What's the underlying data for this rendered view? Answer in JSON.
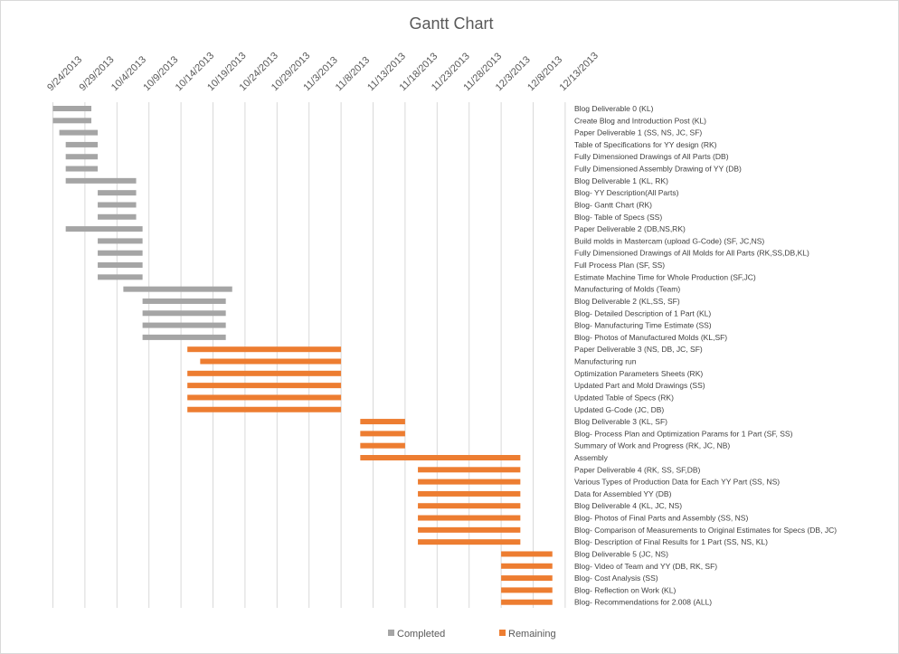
{
  "chart_data": {
    "type": "gantt",
    "title": "Gantt Chart",
    "x_ticks": [
      "9/24/2013",
      "9/29/2013",
      "10/4/2013",
      "10/9/2013",
      "10/14/2013",
      "10/19/2013",
      "10/24/2013",
      "10/29/2013",
      "11/3/2013",
      "11/8/2013",
      "11/13/2013",
      "11/18/2013",
      "11/23/2013",
      "11/28/2013",
      "12/3/2013",
      "12/8/2013",
      "12/13/2013"
    ],
    "xlim": [
      "2013-09-24",
      "2013-12-13"
    ],
    "grid": "vertical",
    "legend_position": "bottom",
    "series": [
      {
        "name": "Completed",
        "color": "#a5a5a5"
      },
      {
        "name": "Remaining",
        "color": "#ed7d31"
      }
    ],
    "tasks": [
      {
        "label": "Blog Deliverable 0   (KL)",
        "start": "2013-09-24",
        "end": "2013-09-30",
        "status": "Completed"
      },
      {
        "label": "Create Blog and Introduction Post  (KL)",
        "start": "2013-09-24",
        "end": "2013-09-30",
        "status": "Completed"
      },
      {
        "label": "Paper Deliverable 1 (SS, NS, JC, SF)",
        "start": "2013-09-25",
        "end": "2013-10-01",
        "status": "Completed"
      },
      {
        "label": "Table of Specifications for YY design (RK)",
        "start": "2013-09-26",
        "end": "2013-10-01",
        "status": "Completed"
      },
      {
        "label": "Fully Dimensioned Drawings of All Parts  (DB)",
        "start": "2013-09-26",
        "end": "2013-10-01",
        "status": "Completed"
      },
      {
        "label": "Fully Dimensioned Assembly Drawing of YY  (DB)",
        "start": "2013-09-26",
        "end": "2013-10-01",
        "status": "Completed"
      },
      {
        "label": "Blog Deliverable 1  (KL, RK)",
        "start": "2013-09-26",
        "end": "2013-10-07",
        "status": "Completed"
      },
      {
        "label": "Blog- YY Description(All Parts)",
        "start": "2013-10-01",
        "end": "2013-10-07",
        "status": "Completed"
      },
      {
        "label": "Blog- Gantt Chart (RK)",
        "start": "2013-10-01",
        "end": "2013-10-07",
        "status": "Completed"
      },
      {
        "label": "Blog- Table of Specs (SS)",
        "start": "2013-10-01",
        "end": "2013-10-07",
        "status": "Completed"
      },
      {
        "label": "Paper Deliverable 2  (DB,NS,RK)",
        "start": "2013-09-26",
        "end": "2013-10-08",
        "status": "Completed"
      },
      {
        "label": "Build molds in Mastercam (upload G-Code) (SF, JC,NS)",
        "start": "2013-10-01",
        "end": "2013-10-08",
        "status": "Completed"
      },
      {
        "label": "Fully Dimensioned Drawings of All Molds for All Parts  (RK,SS,DB,KL)",
        "start": "2013-10-01",
        "end": "2013-10-08",
        "status": "Completed"
      },
      {
        "label": "Full Process Plan (SF, SS)",
        "start": "2013-10-01",
        "end": "2013-10-08",
        "status": "Completed"
      },
      {
        "label": "Estimate Machine Time for Whole Production (SF,JC)",
        "start": "2013-10-01",
        "end": "2013-10-08",
        "status": "Completed"
      },
      {
        "label": "Manufacturing of Molds (Team)",
        "start": "2013-10-05",
        "end": "2013-10-22",
        "status": "Completed"
      },
      {
        "label": "Blog Deliverable 2 (KL,SS, SF)",
        "start": "2013-10-08",
        "end": "2013-10-21",
        "status": "Completed"
      },
      {
        "label": "Blog- Detailed Description of 1 Part (KL)",
        "start": "2013-10-08",
        "end": "2013-10-21",
        "status": "Completed"
      },
      {
        "label": "Blog- Manufacturing Time Estimate (SS)",
        "start": "2013-10-08",
        "end": "2013-10-21",
        "status": "Completed"
      },
      {
        "label": "Blog- Photos of Manufactured Molds (KL,SF)",
        "start": "2013-10-08",
        "end": "2013-10-21",
        "status": "Completed"
      },
      {
        "label": "Paper Deliverable 3 (NS, DB, JC, SF)",
        "start": "2013-10-15",
        "end": "2013-11-08",
        "status": "Remaining"
      },
      {
        "label": "Manufacturing run",
        "start": "2013-10-17",
        "end": "2013-11-08",
        "status": "Remaining"
      },
      {
        "label": "Optimization Parameters Sheets (RK)",
        "start": "2013-10-15",
        "end": "2013-11-08",
        "status": "Remaining"
      },
      {
        "label": "Updated Part and Mold Drawings (SS)",
        "start": "2013-10-15",
        "end": "2013-11-08",
        "status": "Remaining"
      },
      {
        "label": "Updated Table of Specs (RK)",
        "start": "2013-10-15",
        "end": "2013-11-08",
        "status": "Remaining"
      },
      {
        "label": "Updated G-Code (JC, DB)",
        "start": "2013-10-15",
        "end": "2013-11-08",
        "status": "Remaining"
      },
      {
        "label": "Blog Deliverable 3 (KL, SF)",
        "start": "2013-11-11",
        "end": "2013-11-18",
        "status": "Remaining"
      },
      {
        "label": "Blog- Process Plan and Optimization Params for 1 Part (SF, SS)",
        "start": "2013-11-11",
        "end": "2013-11-18",
        "status": "Remaining"
      },
      {
        "label": "Summary of Work and Progress (RK, JC, NB)",
        "start": "2013-11-11",
        "end": "2013-11-18",
        "status": "Remaining"
      },
      {
        "label": "Assembly",
        "start": "2013-11-11",
        "end": "2013-12-06",
        "status": "Remaining"
      },
      {
        "label": "Paper Deliverable 4 (RK, SS, SF,DB)",
        "start": "2013-11-20",
        "end": "2013-12-06",
        "status": "Remaining"
      },
      {
        "label": "Various Types of Production Data for Each YY Part (SS, NS)",
        "start": "2013-11-20",
        "end": "2013-12-06",
        "status": "Remaining"
      },
      {
        "label": "Data for Assembled YY (DB)",
        "start": "2013-11-20",
        "end": "2013-12-06",
        "status": "Remaining"
      },
      {
        "label": "Blog Deliverable 4 (KL, JC, NS)",
        "start": "2013-11-20",
        "end": "2013-12-06",
        "status": "Remaining"
      },
      {
        "label": "Blog- Photos of Final Parts and Assembly (SS, NS)",
        "start": "2013-11-20",
        "end": "2013-12-06",
        "status": "Remaining"
      },
      {
        "label": "Blog- Comparison of Measurements to Original Estimates for Specs (DB, JC)",
        "start": "2013-11-20",
        "end": "2013-12-06",
        "status": "Remaining"
      },
      {
        "label": "Blog- Description of Final Results for 1 Part (SS, NS, KL)",
        "start": "2013-11-20",
        "end": "2013-12-06",
        "status": "Remaining"
      },
      {
        "label": "Blog Deliverable 5 (JC, NS)",
        "start": "2013-12-03",
        "end": "2013-12-11",
        "status": "Remaining"
      },
      {
        "label": "Blog- Video of Team and YY (DB, RK, SF)",
        "start": "2013-12-03",
        "end": "2013-12-11",
        "status": "Remaining"
      },
      {
        "label": "Blog- Cost Analysis (SS)",
        "start": "2013-12-03",
        "end": "2013-12-11",
        "status": "Remaining"
      },
      {
        "label": "Blog- Reflection on Work (KL)",
        "start": "2013-12-03",
        "end": "2013-12-11",
        "status": "Remaining"
      },
      {
        "label": "Blog- Recommendations for 2.008 (ALL)",
        "start": "2013-12-03",
        "end": "2013-12-11",
        "status": "Remaining"
      }
    ]
  }
}
